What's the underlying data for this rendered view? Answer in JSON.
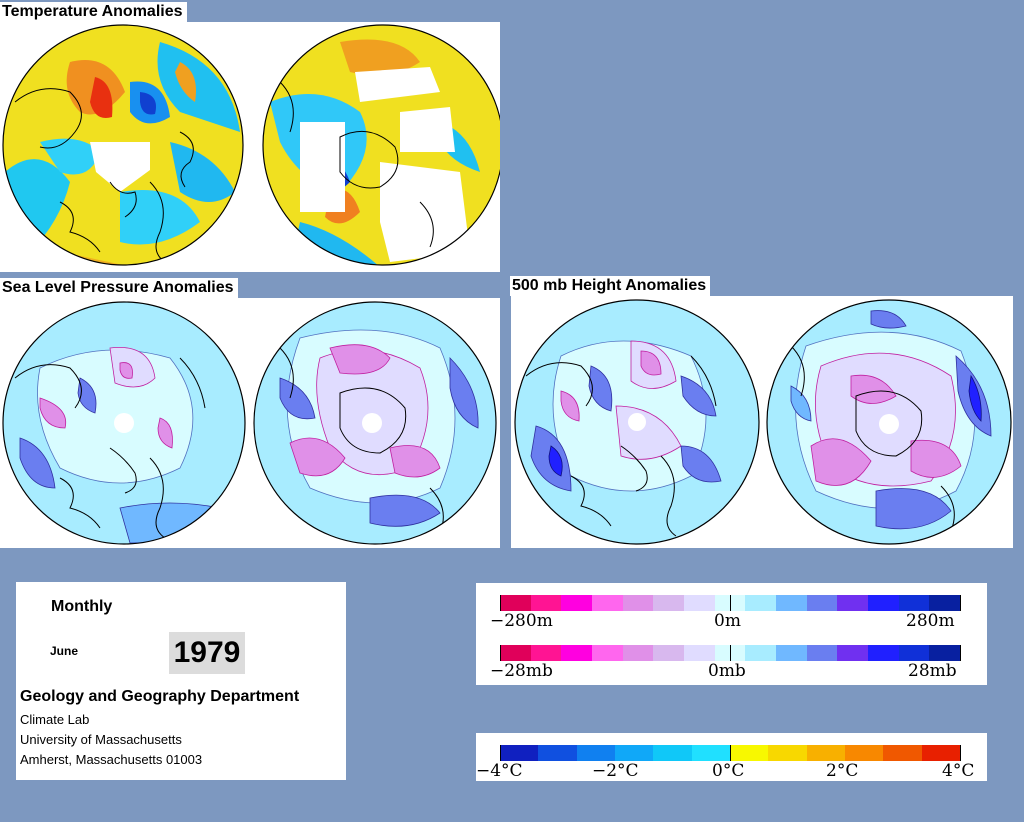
{
  "panels": {
    "temperature": {
      "title": "Temperature Anomalies"
    },
    "sea_level_pressure": {
      "title": "Sea Level Pressure Anomalies"
    },
    "height_500mb": {
      "title": "500 mb Height Anomalies"
    }
  },
  "info": {
    "frequency": "Monthly",
    "month": "June",
    "year": "1979",
    "department": "Geology and Geography Department",
    "lab": "Climate Lab",
    "university": "University of Massachusetts",
    "address": "Amherst, Massachusetts 01003"
  },
  "legends": {
    "height": {
      "min_label": "−280m",
      "zero_label": "0m",
      "max_label": "280m",
      "colors": [
        "#e0005a",
        "#ff1493",
        "#ff00e0",
        "#ff66ee",
        "#e090e8",
        "#d8b8ee",
        "#e0dcff",
        "#d8fcff",
        "#a8ecff",
        "#70b8ff",
        "#6a7ef0",
        "#7030f0",
        "#2020ff",
        "#1030d8",
        "#0820a0"
      ]
    },
    "pressure": {
      "min_label": "−28mb",
      "zero_label": "0mb",
      "max_label": "28mb",
      "colors": [
        "#e0005a",
        "#ff1493",
        "#ff00e0",
        "#ff66ee",
        "#e090e8",
        "#d8b8ee",
        "#e0dcff",
        "#d8fcff",
        "#a8ecff",
        "#70b8ff",
        "#6a7ef0",
        "#7030f0",
        "#2020ff",
        "#1030d8",
        "#0820a0"
      ]
    },
    "temperature": {
      "labels": [
        "−4°C",
        "−2°C",
        "0°C",
        "2°C",
        "4°C"
      ],
      "colors": [
        "#1020c0",
        "#1050e0",
        "#1080f0",
        "#10a8f8",
        "#10c8f8",
        "#20e0ff",
        "#f8f800",
        "#f8d800",
        "#f8b000",
        "#f88800",
        "#f05800",
        "#e82000"
      ]
    }
  },
  "colors": {
    "background": "#7d98c0",
    "ocean_neutral_temp": "#f0e820",
    "ocean_neutral_pressure": "#d8fcff",
    "no_data": "#ffffff"
  }
}
